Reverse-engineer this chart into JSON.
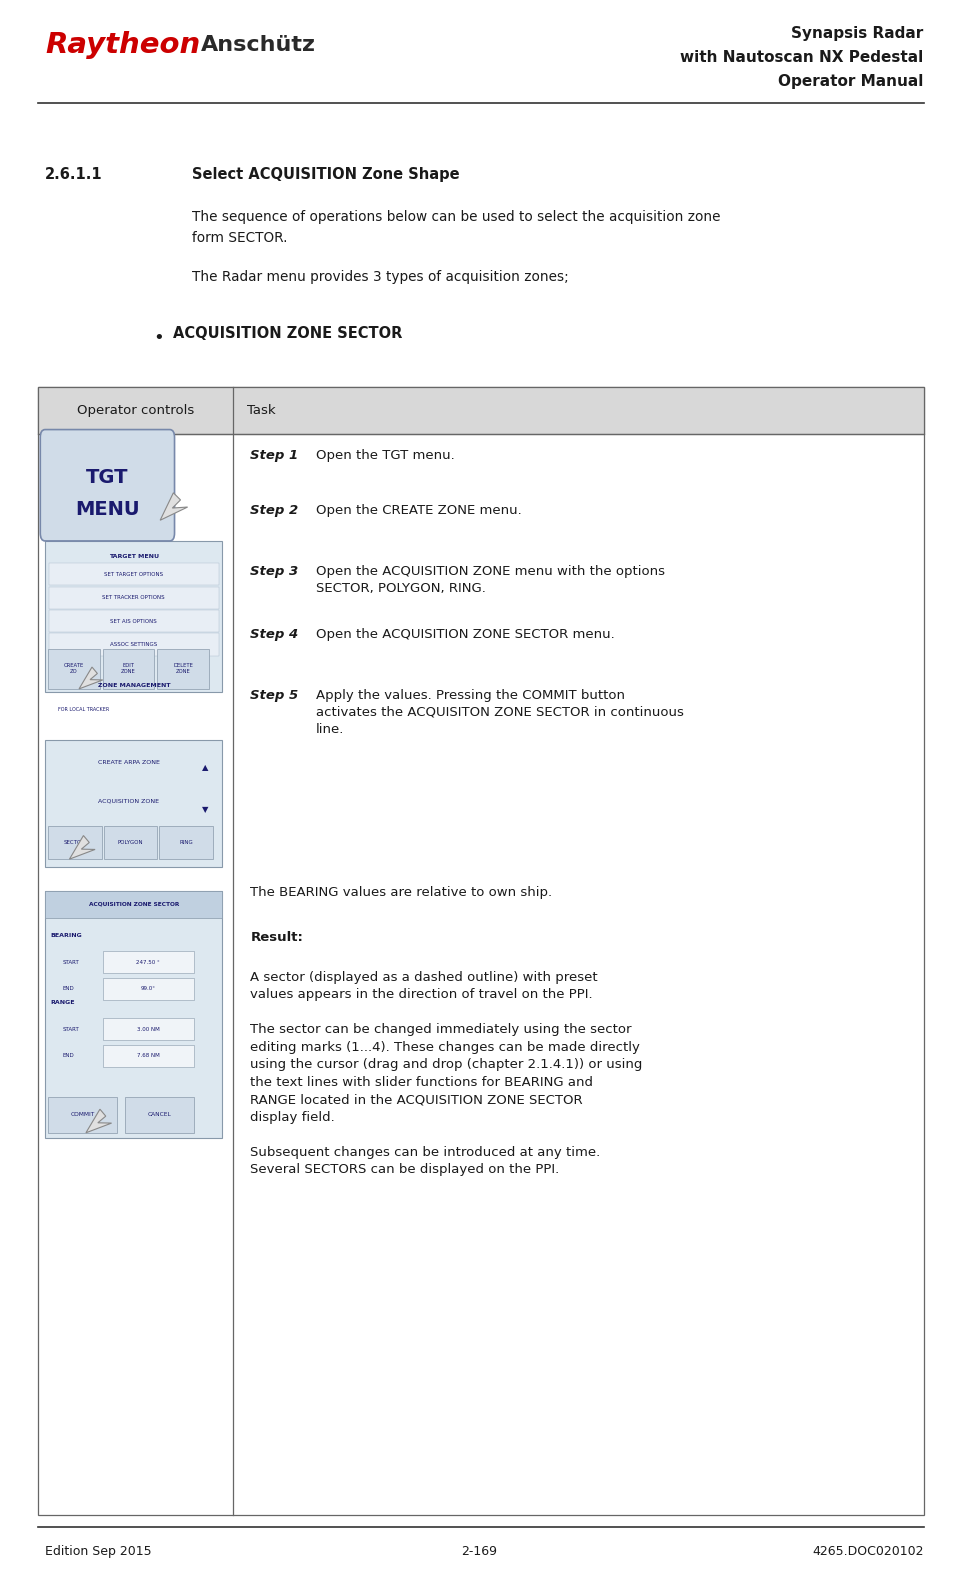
{
  "fig_width": 9.59,
  "fig_height": 15.91,
  "bg_color": "#ffffff",
  "header": {
    "raytheon_text": "Raytheon",
    "raytheon_color": "#cc0000",
    "anschutz_text": "Anschütz",
    "anschutz_color": "#2a2a2a",
    "right_line1": "Synapsis Radar",
    "right_line2": "with Nautoscan NX Pedestal",
    "right_line3": "Operator Manual",
    "right_color": "#1a1a1a"
  },
  "footer": {
    "left": "Edition Sep 2015",
    "center": "2-169",
    "right": "4265.DOC020102"
  },
  "section_number": "2.6.1.1",
  "section_title": "Select ACQUISITION Zone Shape",
  "body1": "The sequence of operations below can be used to select the acquisition zone\nform SECTOR.",
  "body2": "The Radar menu provides 3 types of acquisition zones;",
  "bullet_text": "ACQUISITION ZONE SECTOR",
  "col1_header": "Operator controls",
  "col2_header": "Task",
  "bearing_note": "The BEARING values are relative to own ship.",
  "result_body": "A sector (displayed as a dashed outline) with preset values appears in the direction of travel on the PPI.\n\nThe sector can be changed immediately using the sector editing marks (1...4). These changes can be made directly using the cursor (drag and drop (chapter 2.1.4.1)) or using the text lines with slider functions for BEARING and RANGE located in the ACQUISITION ZONE SECTOR display field.\n\nSubsequent changes can be introduced at any time. Several SECTORS can be displayed on the PPI.",
  "ui_blue_bg": "#dde8f0",
  "ui_blue_text": "#1a1a6e",
  "ui_btn_bg": "#c8d8e8",
  "ui_title_bg": "#c0d0e0"
}
